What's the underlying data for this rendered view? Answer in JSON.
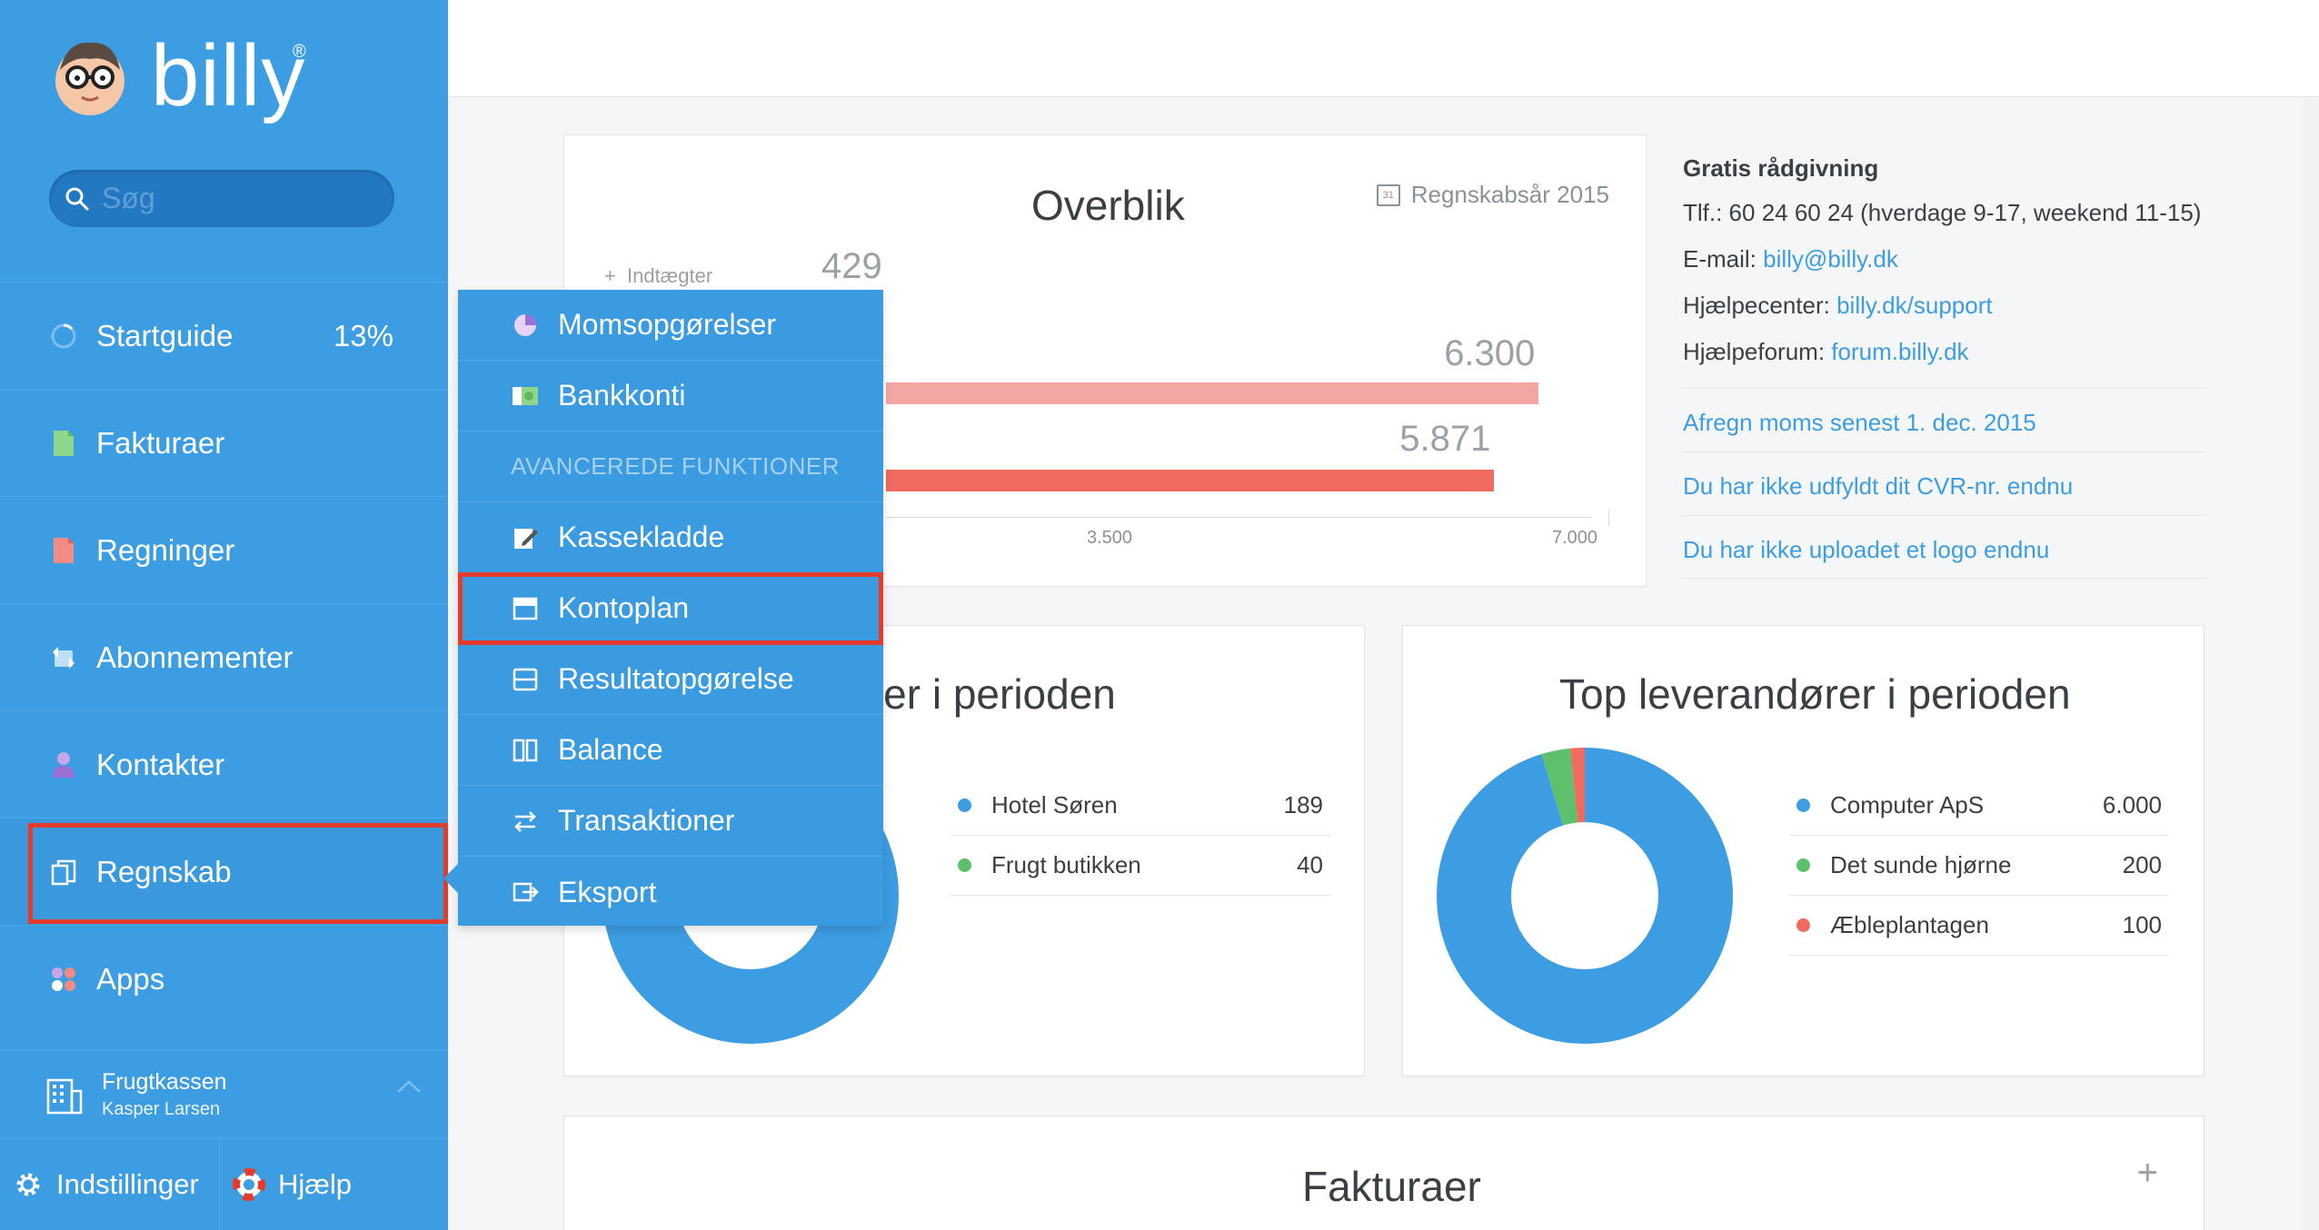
{
  "app": {
    "logo_text": "billy",
    "logo_reg": "®"
  },
  "search": {
    "placeholder": "Søg"
  },
  "nav": {
    "items": [
      {
        "label": "Startguide",
        "value": "13%"
      },
      {
        "label": "Fakturaer"
      },
      {
        "label": "Regninger"
      },
      {
        "label": "Abonnementer"
      },
      {
        "label": "Kontakter"
      },
      {
        "label": "Regnskab"
      },
      {
        "label": "Apps"
      }
    ]
  },
  "company": {
    "name": "Frugtkassen",
    "user": "Kasper Larsen"
  },
  "bottom": {
    "settings": "Indstillinger",
    "help": "Hjælp"
  },
  "dropdown": {
    "items": [
      {
        "label": "Momsopgørelser"
      },
      {
        "label": "Bankkonti"
      }
    ],
    "section_heading": "AVANCEREDE FUNKTIONER",
    "advanced": [
      {
        "label": "Kassekladde"
      },
      {
        "label": "Kontoplan"
      },
      {
        "label": "Resultatopgørelse"
      },
      {
        "label": "Balance"
      },
      {
        "label": "Transaktioner"
      },
      {
        "label": "Eksport"
      }
    ]
  },
  "overview": {
    "title": "Overblik",
    "period": "Regnskabsår 2015",
    "calendar_day": "31",
    "income_label": "Indtægter",
    "income_prefix": "+",
    "income_value": "429",
    "bar1_value": "6.300",
    "bar2_value": "5.871",
    "axis": [
      "3.500",
      "7.000"
    ],
    "chart_data": {
      "type": "bar",
      "categories": [
        "Indtægter",
        "",
        ""
      ],
      "values": [
        429,
        6300,
        5871
      ],
      "xlim": [
        0,
        7000
      ]
    }
  },
  "customers": {
    "title": "Top kunder i perioden",
    "title_visible": "nder i perioden",
    "rows": [
      {
        "name": "Hotel Søren",
        "value": "189",
        "color": "#3d9de2"
      },
      {
        "name": "Frugt butikken",
        "value": "40",
        "color": "#5cc16a"
      }
    ]
  },
  "suppliers": {
    "title": "Top leverandører i perioden",
    "rows": [
      {
        "name": "Computer ApS",
        "value": "6.000",
        "color": "#3d9de2"
      },
      {
        "name": "Det sunde hjørne",
        "value": "200",
        "color": "#5cc16a"
      },
      {
        "name": "Æbleplantagen",
        "value": "100",
        "color": "#f06a5f"
      }
    ],
    "chart_data": {
      "type": "pie",
      "categories": [
        "Computer ApS",
        "Det sunde hjørne",
        "Æbleplantagen"
      ],
      "values": [
        6000,
        200,
        100
      ]
    }
  },
  "info": {
    "heading": "Gratis rådgivning",
    "phone": "Tlf.: 60 24 60 24 (hverdage 9-17, weekend 11-15)",
    "email_label": "E-mail:",
    "email": "billy@billy.dk",
    "helpcenter_label": "Hjælpecenter:",
    "helpcenter": "billy.dk/support",
    "forum_label": "Hjælpeforum:",
    "forum": "forum.billy.dk",
    "notices": [
      "Afregn moms senest 1. dec. 2015",
      "Du har ikke udfyldt dit CVR-nr. endnu",
      "Du har ikke uploadet et logo endnu"
    ]
  },
  "invoices": {
    "title": "Fakturaer",
    "add": "+"
  },
  "colors": {
    "sidebar": "#3d9de2",
    "accent": "#3d9de2",
    "bar1": "#f4a7a2",
    "bar2": "#f06a5f",
    "highlight": "#e53b2d"
  }
}
